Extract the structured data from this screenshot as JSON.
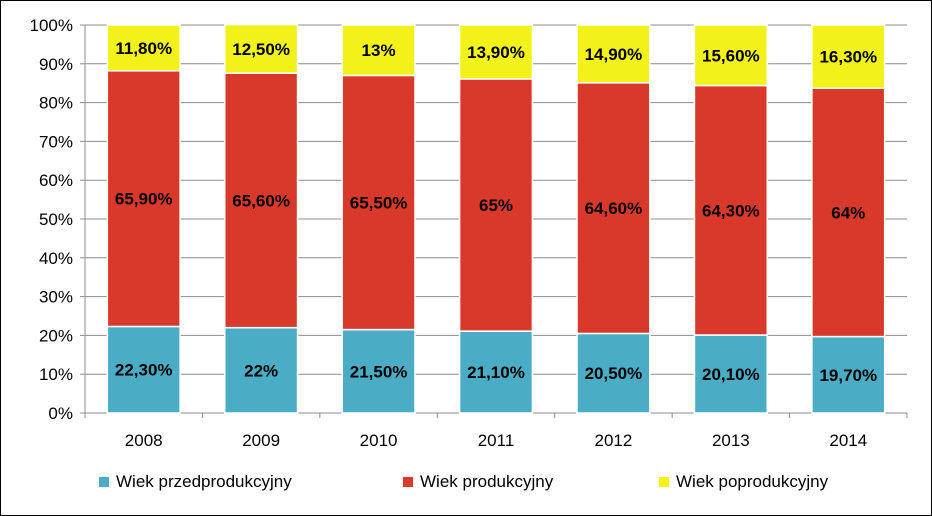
{
  "chart_data": {
    "type": "bar",
    "stacked": true,
    "categories": [
      "2008",
      "2009",
      "2010",
      "2011",
      "2012",
      "2013",
      "2014"
    ],
    "series": [
      {
        "name": "Wiek przedprodukcyjny",
        "color": "#4bacc6",
        "values": [
          22.3,
          22.0,
          21.5,
          21.1,
          20.5,
          20.1,
          19.7
        ],
        "labels": [
          "22,30%",
          "22%",
          "21,50%",
          "21,10%",
          "20,50%",
          "20,10%",
          "19,70%"
        ]
      },
      {
        "name": "Wiek produkcyjny",
        "color": "#d8392b",
        "values": [
          65.9,
          65.6,
          65.5,
          65.0,
          64.6,
          64.3,
          64.0
        ],
        "labels": [
          "65,90%",
          "65,60%",
          "65,50%",
          "65%",
          "64,60%",
          "64,30%",
          "64%"
        ]
      },
      {
        "name": "Wiek poprodukcyjny",
        "color": "#f2f21a",
        "values": [
          11.8,
          12.5,
          13.0,
          13.9,
          14.9,
          15.6,
          16.3
        ],
        "labels": [
          "11,80%",
          "12,50%",
          "13%",
          "13,90%",
          "14,90%",
          "15,60%",
          "16,30%"
        ]
      }
    ],
    "ylim": [
      0,
      100
    ],
    "yticks": [
      "0%",
      "10%",
      "20%",
      "30%",
      "40%",
      "50%",
      "60%",
      "70%",
      "80%",
      "90%",
      "100%"
    ],
    "grid": true,
    "legend_position": "bottom"
  }
}
